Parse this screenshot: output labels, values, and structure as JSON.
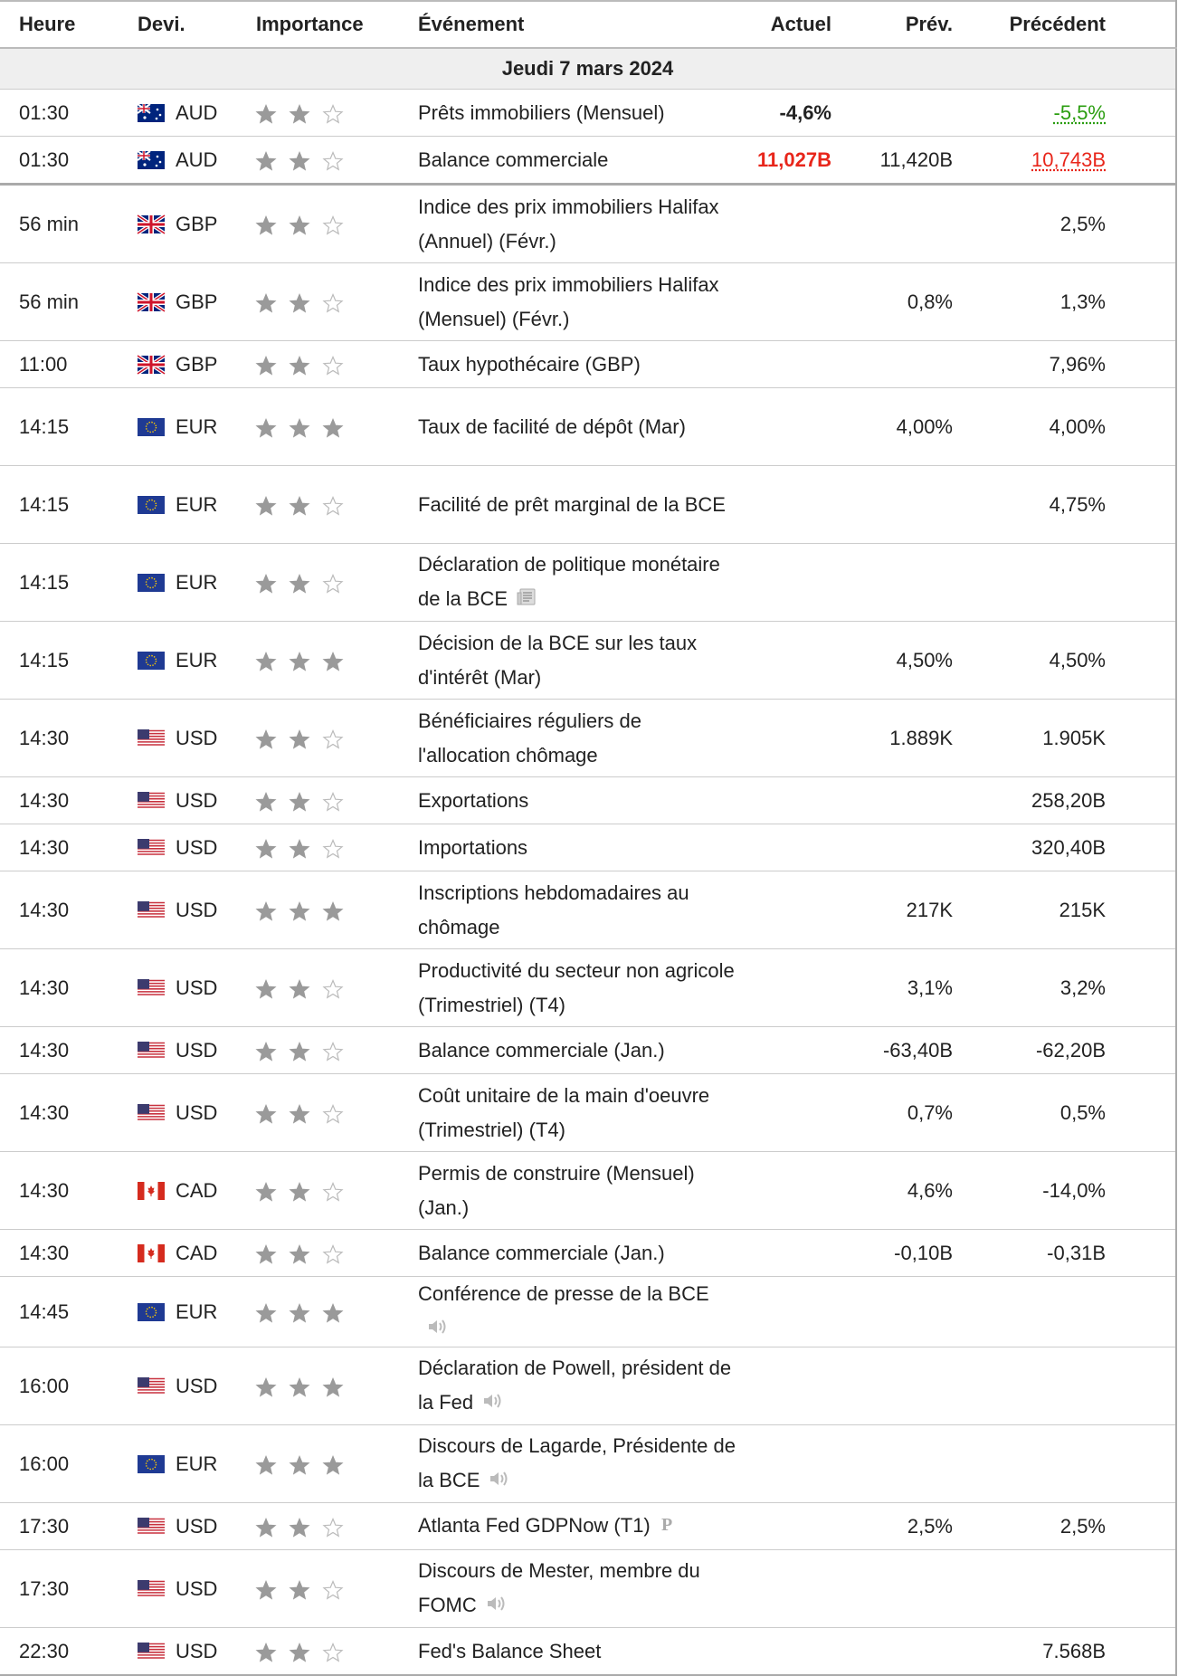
{
  "columns": [
    "Heure",
    "Devi.",
    "Importance",
    "Événement",
    "Actuel",
    "Prév.",
    "Précédent"
  ],
  "date": "Jeudi 7 mars 2024",
  "rows": [
    {
      "time": "01:30",
      "currency": "AUD",
      "importance": 2,
      "event": "Prêts immobiliers (Mensuel)",
      "actual": "-4,6%",
      "previous": "-5,5%",
      "previous_color": "#2a9d0f"
    },
    {
      "time": "01:30",
      "currency": "AUD",
      "importance": 2,
      "event": "Balance commerciale",
      "actual": "11,027B",
      "actual_color": "#e8261b",
      "forecast": "11,420B",
      "previous": "10,743B",
      "previous_color": "#e8261b"
    },
    {
      "time": "56 min",
      "currency": "GBP",
      "importance": 2,
      "event": "Indice des prix immobiliers Halifax (Annuel) (Févr.)",
      "previous": "2,5%"
    },
    {
      "time": "56 min",
      "currency": "GBP",
      "importance": 2,
      "event": "Indice des prix immobiliers Halifax (Mensuel) (Févr.)",
      "forecast": "0,8%",
      "previous": "1,3%"
    },
    {
      "time": "11:00",
      "currency": "GBP",
      "importance": 2,
      "event": "Taux hypothécaire (GBP)",
      "previous": "7,96%"
    },
    {
      "time": "14:15",
      "currency": "EUR",
      "importance": 3,
      "event": "Taux de facilité de dépôt (Mar)",
      "forecast": "4,00%",
      "previous": "4,00%"
    },
    {
      "time": "14:15",
      "currency": "EUR",
      "importance": 2,
      "event": "Facilité de prêt marginal de la BCE",
      "previous": "4,75%"
    },
    {
      "time": "14:15",
      "currency": "EUR",
      "importance": 2,
      "event": "Déclaration de politique monétaire de la BCE",
      "icon": "news"
    },
    {
      "time": "14:15",
      "currency": "EUR",
      "importance": 3,
      "event": "Décision de la BCE sur les taux d'intérêt (Mar)",
      "forecast": "4,50%",
      "previous": "4,50%"
    },
    {
      "time": "14:30",
      "currency": "USD",
      "importance": 2,
      "event": "Bénéficiaires réguliers de l'allocation chômage",
      "forecast": "1.889K",
      "previous": "1.905K"
    },
    {
      "time": "14:30",
      "currency": "USD",
      "importance": 2,
      "event": "Exportations",
      "previous": "258,20B"
    },
    {
      "time": "14:30",
      "currency": "USD",
      "importance": 2,
      "event": "Importations",
      "previous": "320,40B"
    },
    {
      "time": "14:30",
      "currency": "USD",
      "importance": 3,
      "event": "Inscriptions hebdomadaires au chômage",
      "forecast": "217K",
      "previous": "215K"
    },
    {
      "time": "14:30",
      "currency": "USD",
      "importance": 2,
      "event": "Productivité du secteur non agricole (Trimestriel) (T4)",
      "forecast": "3,1%",
      "previous": "3,2%"
    },
    {
      "time": "14:30",
      "currency": "USD",
      "importance": 2,
      "event": "Balance commerciale (Jan.)",
      "forecast": "-63,40B",
      "previous": "-62,20B"
    },
    {
      "time": "14:30",
      "currency": "USD",
      "importance": 2,
      "event": "Coût unitaire de la main d'oeuvre (Trimestriel) (T4)",
      "forecast": "0,7%",
      "previous": "0,5%"
    },
    {
      "time": "14:30",
      "currency": "CAD",
      "importance": 2,
      "event": "Permis de construire (Mensuel) (Jan.)",
      "forecast": "4,6%",
      "previous": "-14,0%"
    },
    {
      "time": "14:30",
      "currency": "CAD",
      "importance": 2,
      "event": "Balance commerciale (Jan.)",
      "forecast": "-0,10B",
      "previous": "-0,31B"
    },
    {
      "time": "14:45",
      "currency": "EUR",
      "importance": 3,
      "event": "Conférence de presse de la BCE",
      "icon": "speaker"
    },
    {
      "time": "16:00",
      "currency": "USD",
      "importance": 3,
      "event": "Déclaration de Powell, président de la Fed",
      "icon": "speaker"
    },
    {
      "time": "16:00",
      "currency": "EUR",
      "importance": 3,
      "event": "Discours de Lagarde, Présidente de la BCE",
      "icon": "speaker"
    },
    {
      "time": "17:30",
      "currency": "USD",
      "importance": 2,
      "event": "Atlanta Fed GDPNow (T1)",
      "forecast": "2,5%",
      "previous": "2,5%",
      "icon": "p"
    },
    {
      "time": "17:30",
      "currency": "USD",
      "importance": 2,
      "event": "Discours de Mester, membre du FOMC",
      "icon": "speaker"
    },
    {
      "time": "22:30",
      "currency": "USD",
      "importance": 2,
      "event": "Fed's Balance Sheet",
      "previous": "7.568B"
    }
  ]
}
